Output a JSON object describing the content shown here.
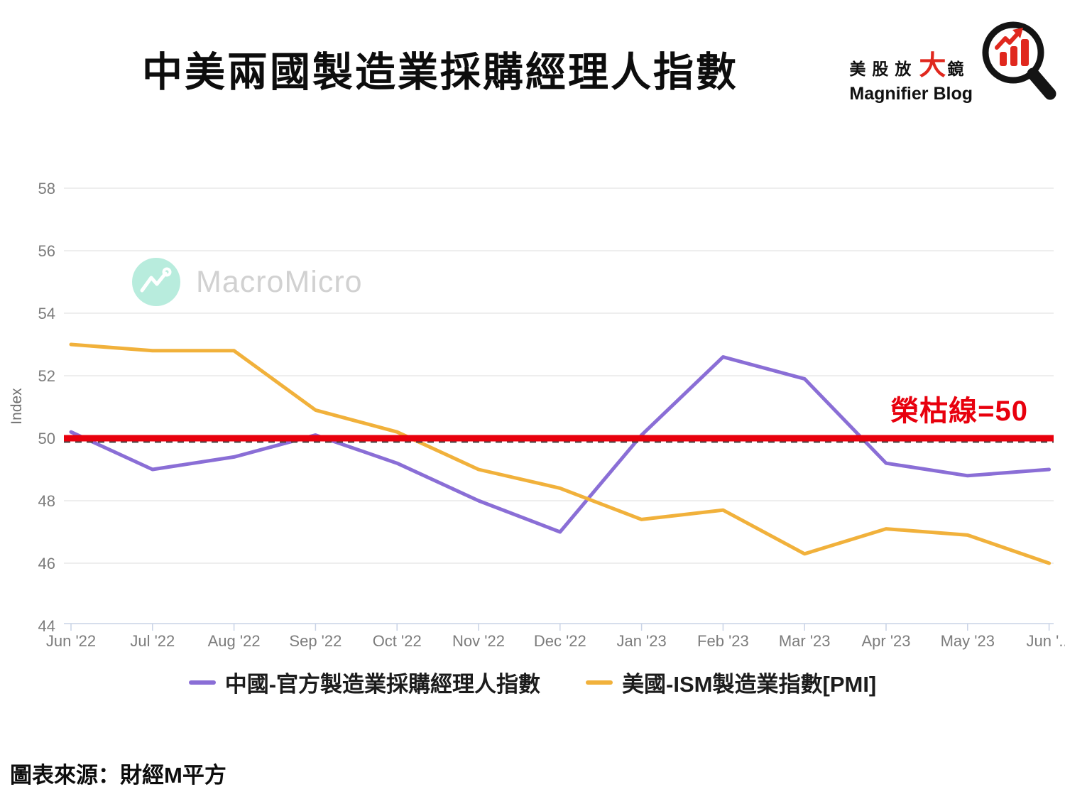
{
  "header": {
    "title": "中美兩國製造業採購經理人指數",
    "logo": {
      "cjk_prefix": "美股放",
      "cjk_big": "大",
      "cjk_suffix": "鏡",
      "subtitle": "Magnifier Blog"
    }
  },
  "watermark": {
    "text": "MacroMicro"
  },
  "source_note": "圖表來源：財經M平方",
  "colors": {
    "china_line": "#8a6ed6",
    "us_line": "#f1b13b",
    "reference_red": "#e8000d",
    "gridline": "#e9e9e9",
    "axis": "#c9d3e6",
    "tick_text": "#7c7c7c",
    "logo_red": "#e0281e",
    "watermark_mint": "#b5ecdc"
  },
  "chart_data": {
    "type": "line",
    "title": "中美兩國製造業採購經理人指數",
    "xlabel": "",
    "ylabel": "Index",
    "ylim": [
      44,
      58
    ],
    "yticks": [
      44,
      46,
      48,
      50,
      52,
      54,
      56,
      58
    ],
    "grid": true,
    "legend_position": "bottom",
    "categories": [
      "Jun '22",
      "Jul '22",
      "Aug '22",
      "Sep '22",
      "Oct '22",
      "Nov '22",
      "Dec '22",
      "Jan '23",
      "Feb '23",
      "Mar '23",
      "Apr '23",
      "May '23",
      "Jun '..."
    ],
    "series": [
      {
        "name": "中國-官方製造業採購經理人指數",
        "color": "#8a6ed6",
        "values": [
          50.2,
          49.0,
          49.4,
          50.1,
          49.2,
          48.0,
          47.0,
          50.1,
          52.6,
          51.9,
          49.2,
          48.8,
          49.0
        ]
      },
      {
        "name": "美國-ISM製造業指數[PMI]",
        "color": "#f1b13b",
        "values": [
          53.0,
          52.8,
          52.8,
          50.9,
          50.2,
          49.0,
          48.4,
          47.4,
          47.7,
          46.3,
          47.1,
          46.9,
          46.0
        ]
      }
    ],
    "reference_line": {
      "value": 50,
      "label": "榮枯線=50",
      "color": "#e8000d"
    }
  }
}
